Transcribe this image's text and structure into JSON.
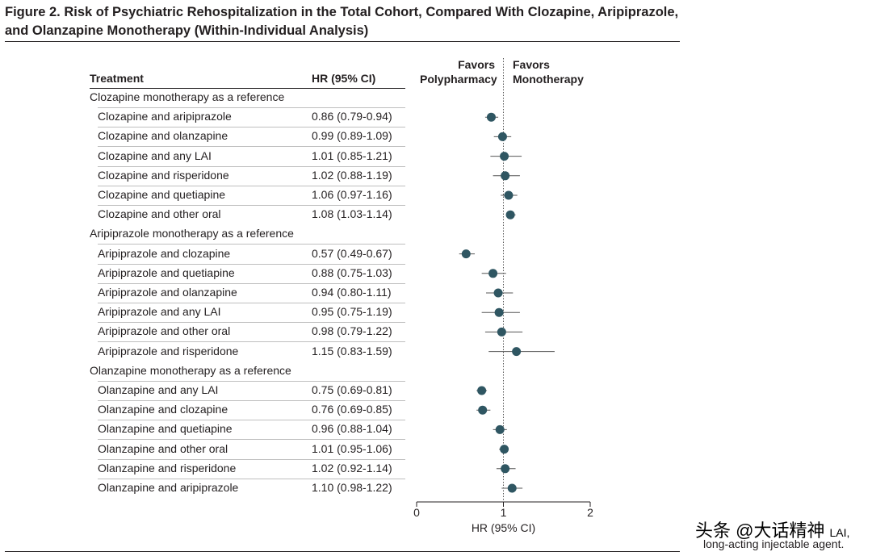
{
  "figure": {
    "title": "Figure 2. Risk of Psychiatric Rehospitalization in the Total Cohort, Compared With Clozapine, Aripiprazole, and Olanzapine Monotherapy (Within-Individual Analysis)",
    "footnote": "long-acting injectable agent.",
    "watermark": "头条 @大话精神",
    "watermark_overlay_text": "LAI,"
  },
  "table": {
    "col_treatment": "Treatment",
    "col_hr": "HR (95% CI)"
  },
  "favors": {
    "left_line1": "Favors",
    "left_line2": "Polypharmacy",
    "right_line1": "Favors",
    "right_line2": "Monotherapy"
  },
  "groups": [
    {
      "label": "Clozapine monotherapy as a reference",
      "rows": [
        {
          "label": "Clozapine and aripiprazole",
          "ci": "0.86 (0.79-0.94)"
        },
        {
          "label": "Clozapine and olanzapine",
          "ci": "0.99 (0.89-1.09)"
        },
        {
          "label": "Clozapine and any LAI",
          "ci": "1.01 (0.85-1.21)"
        },
        {
          "label": "Clozapine and risperidone",
          "ci": "1.02 (0.88-1.19)"
        },
        {
          "label": "Clozapine and quetiapine",
          "ci": "1.06 (0.97-1.16)"
        },
        {
          "label": "Clozapine and other oral",
          "ci": "1.08 (1.03-1.14)"
        }
      ]
    },
    {
      "label": "Aripiprazole monotherapy as a reference",
      "rows": [
        {
          "label": "Aripiprazole and clozapine",
          "ci": "0.57 (0.49-0.67)"
        },
        {
          "label": "Aripiprazole and quetiapine",
          "ci": "0.88 (0.75-1.03)"
        },
        {
          "label": "Aripiprazole and olanzapine",
          "ci": "0.94 (0.80-1.11)"
        },
        {
          "label": "Aripiprazole and any LAI",
          "ci": "0.95 (0.75-1.19)"
        },
        {
          "label": "Aripiprazole and other oral",
          "ci": "0.98 (0.79-1.22)"
        },
        {
          "label": "Aripiprazole and risperidone",
          "ci": "1.15 (0.83-1.59)"
        }
      ]
    },
    {
      "label": "Olanzapine monotherapy as a reference",
      "rows": [
        {
          "label": "Olanzapine and any LAI",
          "ci": "0.75 (0.69-0.81)"
        },
        {
          "label": "Olanzapine and clozapine",
          "ci": "0.76 (0.69-0.85)"
        },
        {
          "label": "Olanzapine and quetiapine",
          "ci": "0.96 (0.88-1.04)"
        },
        {
          "label": "Olanzapine and other oral",
          "ci": "1.01 (0.95-1.06)"
        },
        {
          "label": "Olanzapine and risperidone",
          "ci": "1.02 (0.92-1.14)"
        },
        {
          "label": "Olanzapine and aripiprazole",
          "ci": "1.10 (0.98-1.22)"
        }
      ]
    }
  ],
  "chart_data": {
    "type": "forest",
    "xlabel": "HR (95% CI)",
    "xlim": [
      0,
      2
    ],
    "xticks": [
      0,
      1,
      2
    ],
    "xtick_labels": [
      "0",
      "1",
      "2"
    ],
    "reference_line": 1,
    "point_color": "#2f5662",
    "series": [
      {
        "name": "Clozapine and aripiprazole",
        "hr": 0.86,
        "lo": 0.79,
        "hi": 0.94
      },
      {
        "name": "Clozapine and olanzapine",
        "hr": 0.99,
        "lo": 0.89,
        "hi": 1.09
      },
      {
        "name": "Clozapine and any LAI",
        "hr": 1.01,
        "lo": 0.85,
        "hi": 1.21
      },
      {
        "name": "Clozapine and risperidone",
        "hr": 1.02,
        "lo": 0.88,
        "hi": 1.19
      },
      {
        "name": "Clozapine and quetiapine",
        "hr": 1.06,
        "lo": 0.97,
        "hi": 1.16
      },
      {
        "name": "Clozapine and other oral",
        "hr": 1.08,
        "lo": 1.03,
        "hi": 1.14
      },
      {
        "name": "Aripiprazole and clozapine",
        "hr": 0.57,
        "lo": 0.49,
        "hi": 0.67
      },
      {
        "name": "Aripiprazole and quetiapine",
        "hr": 0.88,
        "lo": 0.75,
        "hi": 1.03
      },
      {
        "name": "Aripiprazole and olanzapine",
        "hr": 0.94,
        "lo": 0.8,
        "hi": 1.11
      },
      {
        "name": "Aripiprazole and any LAI",
        "hr": 0.95,
        "lo": 0.75,
        "hi": 1.19
      },
      {
        "name": "Aripiprazole and other oral",
        "hr": 0.98,
        "lo": 0.79,
        "hi": 1.22
      },
      {
        "name": "Aripiprazole and risperidone",
        "hr": 1.15,
        "lo": 0.83,
        "hi": 1.59
      },
      {
        "name": "Olanzapine and any LAI",
        "hr": 0.75,
        "lo": 0.69,
        "hi": 0.81
      },
      {
        "name": "Olanzapine and clozapine",
        "hr": 0.76,
        "lo": 0.69,
        "hi": 0.85
      },
      {
        "name": "Olanzapine and quetiapine",
        "hr": 0.96,
        "lo": 0.88,
        "hi": 1.04
      },
      {
        "name": "Olanzapine and other oral",
        "hr": 1.01,
        "lo": 0.95,
        "hi": 1.06
      },
      {
        "name": "Olanzapine and risperidone",
        "hr": 1.02,
        "lo": 0.92,
        "hi": 1.14
      },
      {
        "name": "Olanzapine and aripiprazole",
        "hr": 1.1,
        "lo": 0.98,
        "hi": 1.22
      }
    ]
  }
}
